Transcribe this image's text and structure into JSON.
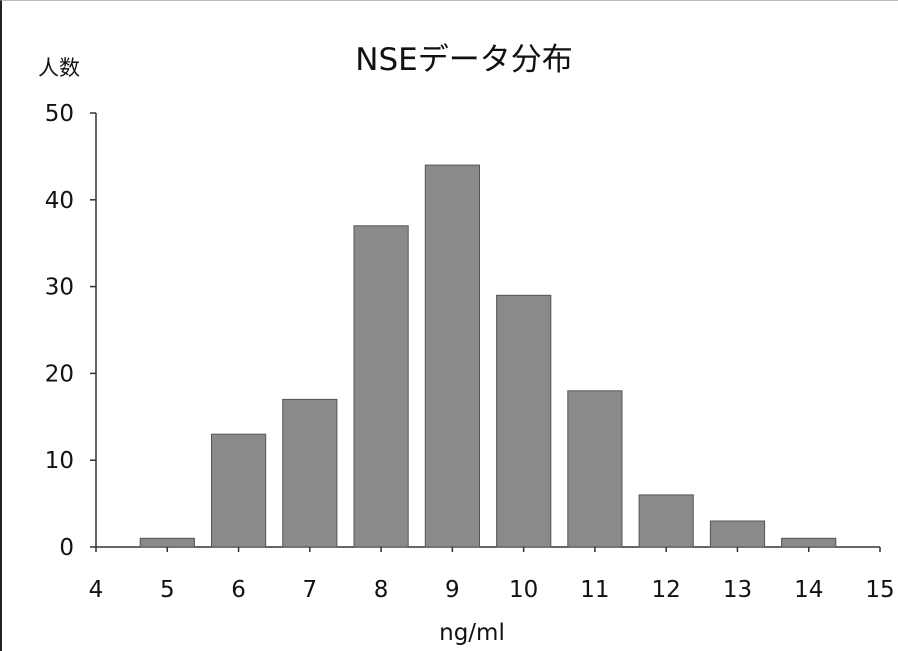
{
  "chart_data": {
    "type": "bar",
    "title": "NSEデータ分布",
    "xlabel": "ng/ml",
    "ylabel": "人数",
    "x": [
      5,
      6,
      7,
      8,
      9,
      10,
      11,
      12,
      13,
      14
    ],
    "values": [
      1,
      13,
      17,
      37,
      44,
      29,
      18,
      6,
      3,
      1
    ],
    "xlim": [
      4,
      15
    ],
    "ylim": [
      0,
      50
    ],
    "xticks": [
      "4",
      "5",
      "6",
      "7",
      "8",
      "9",
      "10",
      "11",
      "12",
      "13",
      "14",
      "15"
    ],
    "yticks": [
      "0",
      "10",
      "20",
      "30",
      "40",
      "50"
    ],
    "grid": false,
    "legend": "none",
    "bar_color": "#8a8a8a"
  }
}
